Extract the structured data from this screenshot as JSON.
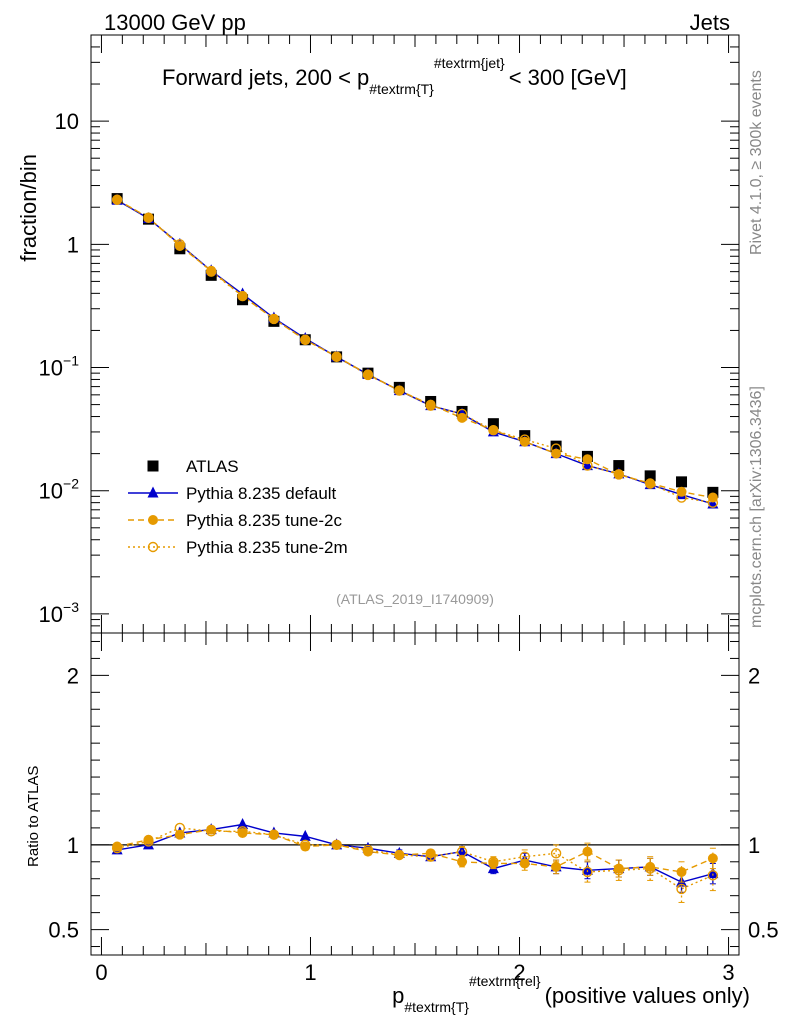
{
  "header": {
    "left": "13000 GeV pp",
    "right": "Jets"
  },
  "side_labels": {
    "top": "Rivet 4.1.0, ≥ 300k events",
    "bottom": "mcplots.cern.ch [arXiv:1306.3436]"
  },
  "chart_data": [
    {
      "type": "line",
      "panel": "main",
      "title": "Forward jets, 200 < p",
      "title_sub": "#textrm{T}",
      "title_sup": "#textrm{jet}",
      "title_end": "< 300 [GeV]",
      "ylabel": "fraction/bin",
      "yscale": "log",
      "ylim": [
        0.0007,
        50
      ],
      "xlim": [
        -0.05,
        3.05
      ],
      "yticks": [
        {
          "v": 10,
          "t": "10"
        },
        {
          "v": 1,
          "t": "1"
        },
        {
          "v": 0.1,
          "t": "10",
          "exp": "−1"
        },
        {
          "v": 0.01,
          "t": "10",
          "exp": "−2"
        },
        {
          "v": 0.001,
          "t": "10",
          "exp": "−3"
        }
      ],
      "watermark": "(ATLAS_2019_I1740909)",
      "x": [
        0.075,
        0.225,
        0.375,
        0.525,
        0.675,
        0.825,
        0.975,
        1.125,
        1.275,
        1.425,
        1.575,
        1.725,
        1.875,
        2.025,
        2.175,
        2.325,
        2.475,
        2.625,
        2.775,
        2.925
      ],
      "series": [
        {
          "name": "ATLAS",
          "color": "#000000",
          "marker": "square",
          "values": [
            2.35,
            1.6,
            0.92,
            0.56,
            0.355,
            0.237,
            0.168,
            0.122,
            0.09,
            0.069,
            0.053,
            0.044,
            0.035,
            0.028,
            0.023,
            0.019,
            0.016,
            0.0132,
            0.0118,
            0.0097
          ]
        },
        {
          "name": "Pythia 8.235 default",
          "color": "#0000cc",
          "marker": "triangle",
          "dash": "",
          "values": [
            2.28,
            1.62,
            1.0,
            0.61,
            0.395,
            0.252,
            0.172,
            0.122,
            0.088,
            0.065,
            0.049,
            0.042,
            0.03,
            0.025,
            0.02,
            0.016,
            0.0137,
            0.0112,
            0.0093,
            0.0078
          ]
        },
        {
          "name": "Pythia 8.235 tune-2c",
          "color": "#e69a00",
          "marker": "circle",
          "dash": "6,4",
          "values": [
            2.3,
            1.65,
            0.97,
            0.61,
            0.38,
            0.248,
            0.167,
            0.123,
            0.088,
            0.065,
            0.05,
            0.039,
            0.031,
            0.025,
            0.02,
            0.018,
            0.0135,
            0.0115,
            0.0098,
            0.0088
          ]
        },
        {
          "name": "Pythia 8.235 tune-2m",
          "color": "#e69a00",
          "marker": "open-circle",
          "dash": "2,3",
          "values": [
            2.3,
            1.64,
            1.0,
            0.6,
            0.38,
            0.248,
            0.168,
            0.122,
            0.087,
            0.065,
            0.049,
            0.042,
            0.031,
            0.026,
            0.022,
            0.016,
            0.0136,
            0.0114,
            0.0088,
            0.008
          ]
        }
      ]
    },
    {
      "type": "line",
      "panel": "ratio",
      "ylabel": "Ratio to ATLAS",
      "ylim": [
        0.35,
        2.25
      ],
      "xlim": [
        -0.05,
        3.05
      ],
      "yticks": [
        {
          "v": 0.5,
          "t": "0.5"
        },
        {
          "v": 1,
          "t": "1"
        },
        {
          "v": 2,
          "t": "2"
        }
      ],
      "xticks": [
        {
          "v": 0,
          "t": "0"
        },
        {
          "v": 1,
          "t": "1"
        },
        {
          "v": 2,
          "t": "2"
        },
        {
          "v": 3,
          "t": "3"
        }
      ],
      "xlabel": "p",
      "xlabel_sub": "#textrm{T}",
      "xlabel_sup": "#textrm{rel}",
      "xlabel_end": "(positive values only)",
      "x": [
        0.075,
        0.225,
        0.375,
        0.525,
        0.675,
        0.825,
        0.975,
        1.125,
        1.275,
        1.425,
        1.575,
        1.725,
        1.875,
        2.025,
        2.175,
        2.325,
        2.475,
        2.625,
        2.775,
        2.925
      ],
      "series": [
        {
          "name": "Pythia 8.235 default",
          "color": "#0000cc",
          "marker": "triangle",
          "dash": "",
          "values": [
            0.97,
            1.0,
            1.07,
            1.09,
            1.12,
            1.07,
            1.05,
            1.0,
            0.98,
            0.95,
            0.93,
            0.96,
            0.86,
            0.91,
            0.87,
            0.85,
            0.86,
            0.87,
            0.78,
            0.83
          ],
          "errors": [
            0,
            0,
            0,
            0,
            0,
            0,
            0,
            0,
            0,
            0.02,
            0.02,
            0.02,
            0.03,
            0.04,
            0.04,
            0.05,
            0.05,
            0.05,
            0.06,
            0.06
          ]
        },
        {
          "name": "Pythia 8.235 tune-2c",
          "color": "#e69a00",
          "marker": "circle",
          "dash": "6,4",
          "values": [
            0.99,
            1.03,
            1.06,
            1.09,
            1.07,
            1.06,
            0.99,
            1.0,
            0.96,
            0.94,
            0.95,
            0.9,
            0.89,
            0.89,
            0.87,
            0.96,
            0.86,
            0.87,
            0.84,
            0.92
          ],
          "errors": [
            0,
            0,
            0,
            0,
            0,
            0,
            0,
            0,
            0,
            0.02,
            0.02,
            0.03,
            0.03,
            0.04,
            0.04,
            0.05,
            0.05,
            0.05,
            0.06,
            0.06
          ]
        },
        {
          "name": "Pythia 8.235 tune-2m",
          "color": "#e69a00",
          "marker": "open-circle",
          "dash": "2,3",
          "values": [
            0.98,
            1.02,
            1.1,
            1.08,
            1.08,
            1.06,
            1.0,
            1.0,
            0.97,
            0.94,
            0.93,
            0.96,
            0.9,
            0.93,
            0.95,
            0.84,
            0.85,
            0.86,
            0.74,
            0.82
          ],
          "errors": [
            0,
            0,
            0,
            0,
            0,
            0,
            0,
            0,
            0,
            0.02,
            0.02,
            0.03,
            0.03,
            0.04,
            0.05,
            0.06,
            0.06,
            0.07,
            0.08,
            0.09
          ]
        }
      ]
    }
  ],
  "legend": [
    {
      "label": "ATLAS",
      "marker": "square",
      "color": "#000000",
      "dash": ""
    },
    {
      "label": "Pythia 8.235 default",
      "marker": "triangle",
      "color": "#0000cc",
      "dash": ""
    },
    {
      "label": "Pythia 8.235 tune-2c",
      "marker": "circle",
      "color": "#e69a00",
      "dash": "6,4"
    },
    {
      "label": "Pythia 8.235 tune-2m",
      "marker": "open-circle",
      "color": "#e69a00",
      "dash": "2,3"
    }
  ]
}
